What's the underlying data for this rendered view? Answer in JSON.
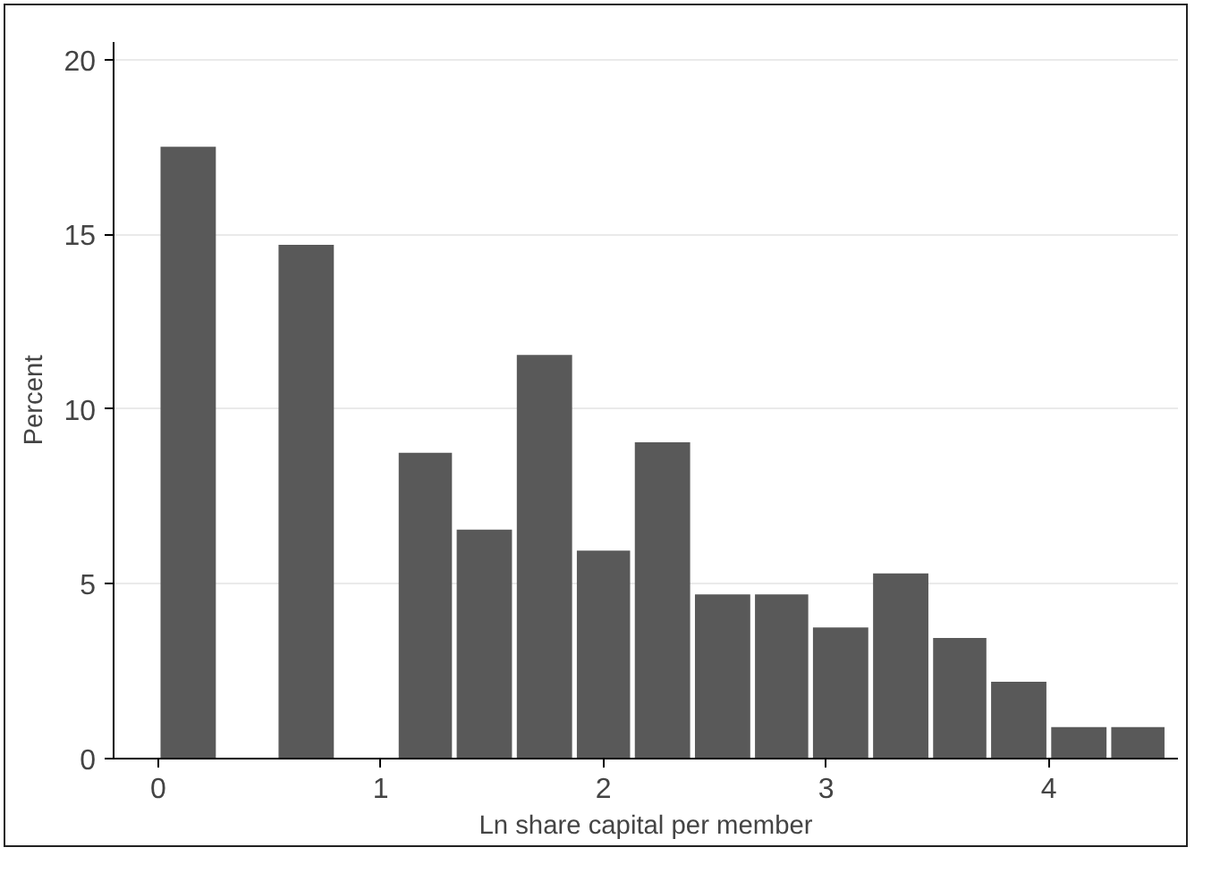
{
  "chart_data": {
    "type": "histogram",
    "xlabel": "Ln share capital per member",
    "ylabel": "Percent",
    "bins": [
      0,
      0.27,
      0.53,
      0.8,
      1.07,
      1.33,
      1.6,
      1.87,
      2.13,
      2.4,
      2.67,
      2.93,
      3.2,
      3.47,
      3.73,
      4,
      4.27,
      4.53
    ],
    "values": [
      17.5,
      0,
      14.7,
      0,
      8.75,
      6.55,
      11.55,
      5.95,
      9.05,
      4.7,
      4.7,
      3.75,
      5.3,
      3.45,
      2.2,
      0.9,
      0.9
    ],
    "color": "#595959",
    "xlim": [
      -0.2,
      4.58
    ],
    "xticks": [
      0,
      1,
      2,
      3,
      4
    ],
    "ylim": [
      0,
      20.5
    ],
    "yticks": [
      0,
      5,
      10,
      15,
      20
    ],
    "grid": "y"
  }
}
